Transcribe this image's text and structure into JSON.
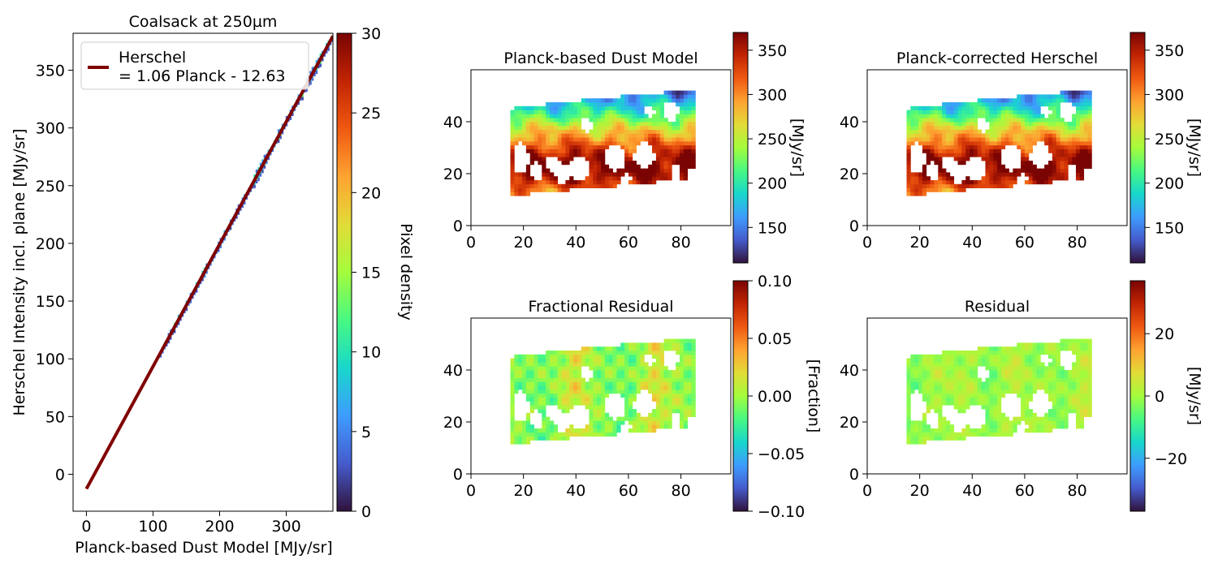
{
  "chart_data": [
    {
      "type": "heatmap",
      "title": "Coalsack at 250µm",
      "xlabel": "Planck-based Dust Model [MJy/sr]",
      "ylabel": "Herschel Intensity incl. plane [MJy/sr]",
      "xlim": [
        -20,
        370
      ],
      "ylim": [
        -32,
        382
      ],
      "xticks": [
        0,
        100,
        200,
        300
      ],
      "yticks": [
        0,
        50,
        100,
        150,
        200,
        250,
        300,
        350
      ],
      "colorbar": {
        "label": "Pixel density",
        "range": [
          0,
          30
        ],
        "ticks": [
          0,
          5,
          10,
          15,
          20,
          25,
          30
        ]
      },
      "fit_line": {
        "slope": 1.06,
        "intercept": -12.63,
        "x_range": [
          0,
          370
        ],
        "color": "#800000"
      },
      "legend": {
        "label": "Herschel\n= 1.06 Planck - 12.63",
        "line1": "Herschel",
        "line2": "= 1.06 Planck - 12.63",
        "placement": "upper-left"
      },
      "density_band": {
        "x_range": [
          110,
          370
        ],
        "max_density": 22
      }
    },
    {
      "type": "heatmap",
      "title": "Planck-based Dust Model",
      "xlim": [
        0,
        99
      ],
      "ylim": [
        0,
        60
      ],
      "xticks": [
        0,
        20,
        40,
        60,
        80
      ],
      "yticks": [
        0,
        20,
        40
      ],
      "colorbar": {
        "label": "[MJy/sr]",
        "range": [
          110,
          370
        ],
        "ticks": [
          150,
          200,
          250,
          300,
          350
        ]
      }
    },
    {
      "type": "heatmap",
      "title": "Planck-corrected Herschel",
      "xlim": [
        0,
        99
      ],
      "ylim": [
        0,
        60
      ],
      "xticks": [
        0,
        20,
        40,
        60,
        80
      ],
      "yticks": [
        0,
        20,
        40
      ],
      "colorbar": {
        "label": "[MJy/sr]",
        "range": [
          110,
          370
        ],
        "ticks": [
          150,
          200,
          250,
          300,
          350
        ]
      }
    },
    {
      "type": "heatmap",
      "title": "Fractional Residual",
      "xlim": [
        0,
        99
      ],
      "ylim": [
        0,
        60
      ],
      "xticks": [
        0,
        20,
        40,
        60,
        80
      ],
      "yticks": [
        0,
        20,
        40
      ],
      "colorbar": {
        "label": "[Fraction]",
        "range": [
          -0.1,
          0.1
        ],
        "ticks": [
          -0.1,
          -0.05,
          0.0,
          0.05,
          0.1
        ],
        "tick_labels": [
          "−0.10",
          "−0.05",
          "0.00",
          "0.05",
          "0.10"
        ]
      }
    },
    {
      "type": "heatmap",
      "title": "Residual",
      "xlim": [
        0,
        99
      ],
      "ylim": [
        0,
        60
      ],
      "xticks": [
        0,
        20,
        40,
        60,
        80
      ],
      "yticks": [
        0,
        20,
        40
      ],
      "colorbar": {
        "label": "[MJy/sr]",
        "range": [
          -37,
          37
        ],
        "ticks": [
          -20,
          0,
          20
        ],
        "tick_labels": [
          "−20",
          "0",
          "20"
        ]
      }
    }
  ],
  "map_region": {
    "x_range": [
      15,
      85
    ],
    "top_edge": [
      [
        15,
        45
      ],
      [
        30,
        47
      ],
      [
        50,
        49
      ],
      [
        70,
        51
      ],
      [
        85,
        52
      ]
    ],
    "bottom_edge": [
      [
        15,
        11
      ],
      [
        23,
        11
      ],
      [
        23,
        13
      ],
      [
        38,
        13
      ],
      [
        38,
        14
      ],
      [
        55,
        14
      ],
      [
        55,
        16
      ],
      [
        70,
        16
      ],
      [
        70,
        17
      ],
      [
        85,
        17
      ]
    ],
    "holes": [
      {
        "cx": 19,
        "cy": 26,
        "rx": 3,
        "ry": 6
      },
      {
        "cx": 25,
        "cy": 21,
        "rx": 2,
        "ry": 4
      },
      {
        "cx": 31,
        "cy": 24,
        "rx": 3,
        "ry": 3
      },
      {
        "cx": 35,
        "cy": 20,
        "rx": 3,
        "ry": 4
      },
      {
        "cx": 41,
        "cy": 22,
        "rx": 4,
        "ry": 5
      },
      {
        "cx": 44,
        "cy": 39,
        "rx": 2,
        "ry": 3
      },
      {
        "cx": 55,
        "cy": 26,
        "rx": 4,
        "ry": 5
      },
      {
        "cx": 59,
        "cy": 18,
        "rx": 2,
        "ry": 2
      },
      {
        "cx": 66,
        "cy": 27,
        "rx": 4,
        "ry": 5
      },
      {
        "cx": 68,
        "cy": 44,
        "rx": 2,
        "ry": 2
      },
      {
        "cx": 76,
        "cy": 44,
        "rx": 3,
        "ry": 4
      },
      {
        "cx": 78,
        "cy": 21,
        "rx": 2,
        "ry": 3
      },
      {
        "cx": 84,
        "cy": 20,
        "rx": 1,
        "ry": 3
      }
    ]
  }
}
